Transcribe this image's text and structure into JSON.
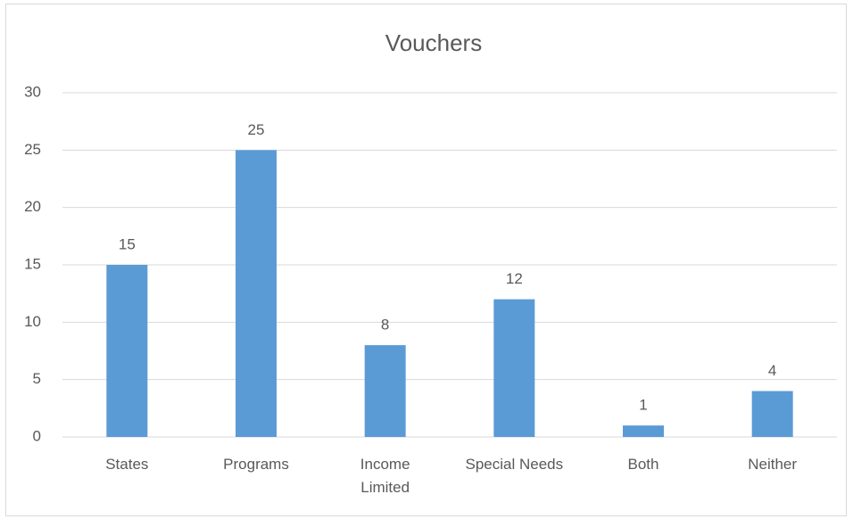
{
  "chart_data": {
    "type": "bar",
    "title": "Vouchers",
    "categories": [
      "States",
      "Programs",
      "Income Limited",
      "Special Needs",
      "Both",
      "Neither"
    ],
    "values": [
      15,
      25,
      8,
      12,
      1,
      4
    ],
    "color": "#5b9bd5",
    "ylim": [
      0,
      30
    ],
    "yticks": [
      0,
      5,
      10,
      15,
      20,
      25,
      30
    ],
    "grid": true,
    "data_labels": true
  }
}
